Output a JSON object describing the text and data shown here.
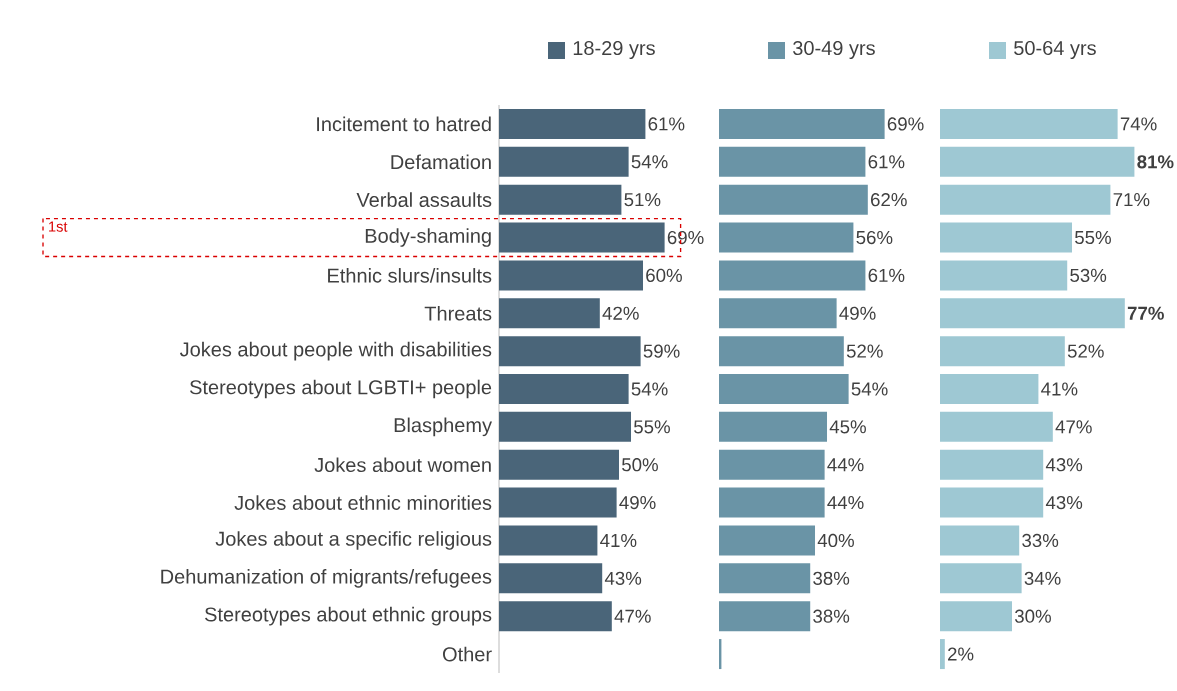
{
  "chart_data": [
    {
      "type": "bar",
      "orientation": "horizontal",
      "tick_labels": "y",
      "legend": "top",
      "categories": [
        "Incitement to hatred",
        "Defamation",
        "Verbal assaults",
        "Body-shaming",
        "Ethnic slurs/insults",
        "Threats",
        "Jokes about people with disabilities",
        "Stereotypes about LGBTI+ people",
        "Blasphemy",
        "Jokes about women",
        "Jokes about ethnic minorities",
        "Jokes about a specific religious",
        "Dehumanization of migrants/refugees",
        "Stereotypes about ethnic groups",
        "Other"
      ],
      "series": [
        {
          "name": "18-29 yrs",
          "color": "#4a6579",
          "values": [
            61,
            54,
            51,
            69,
            60,
            42,
            59,
            54,
            55,
            50,
            49,
            41,
            43,
            47,
            null
          ],
          "value_labels": [
            "61%",
            "54%",
            "51%",
            "69%",
            "60%",
            "42%",
            "59%",
            "54%",
            "55%",
            "50%",
            "49%",
            "41%",
            "43%",
            "47%",
            null
          ]
        }
      ],
      "annotations": [
        "1st"
      ]
    },
    {
      "type": "bar",
      "orientation": "horizontal",
      "tick_labels": false,
      "legend": "top",
      "categories": [
        null,
        null,
        null,
        null,
        null,
        null,
        null,
        null,
        null,
        null,
        null,
        null,
        null,
        null,
        null
      ],
      "series": [
        {
          "name": "30-49 yrs",
          "color": "#6a94a6",
          "values": [
            69,
            61,
            62,
            56,
            61,
            49,
            52,
            54,
            45,
            44,
            44,
            40,
            38,
            38,
            1
          ],
          "value_labels": [
            "69%",
            "61%",
            "62%",
            "56%",
            "61%",
            "49%",
            "52%",
            "54%",
            "45%",
            "44%",
            "44%",
            "40%",
            "38%",
            "38%",
            null
          ]
        }
      ]
    },
    {
      "type": "bar",
      "orientation": "horizontal",
      "tick_labels": false,
      "legend": "top",
      "categories": [
        null,
        null,
        null,
        null,
        null,
        null,
        null,
        null,
        null,
        null,
        null,
        null,
        null,
        null,
        null
      ],
      "series": [
        {
          "name": "50-64 yrs",
          "color": "#9ec8d3",
          "values": [
            74,
            81,
            71,
            55,
            53,
            77,
            52,
            41,
            47,
            43,
            43,
            33,
            34,
            30,
            2
          ],
          "value_labels": [
            "74%",
            "**81%**",
            "71%",
            "55%",
            "53%",
            "**77%**",
            "52%",
            "41%",
            "47%",
            "43%",
            "43%",
            "33%",
            "34%",
            "30%",
            "2%"
          ]
        }
      ]
    }
  ]
}
